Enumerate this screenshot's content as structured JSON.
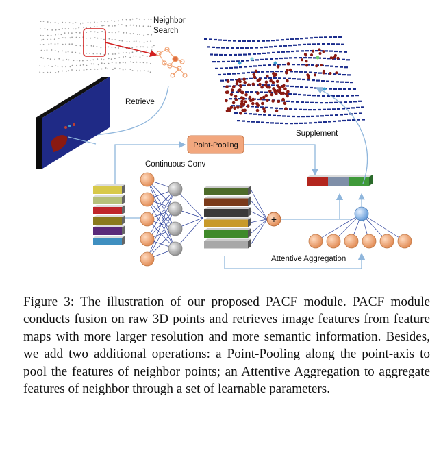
{
  "figure": {
    "labels": {
      "neighbor_search_line1": "Neighbor",
      "neighbor_search_line2": "Search",
      "retrieve": "Retrieve",
      "supplement": "Supplement",
      "point_pooling": "Point-Pooling",
      "continuous_conv": "Continuous Conv",
      "attentive_aggregation": "Attentive Aggregation",
      "plus_symbol": "+"
    },
    "colors": {
      "feature_map_blue": "#1f2a86",
      "lidar_blue": "#1a2c8c",
      "car_red": "#8a1a12",
      "pooling_box": "#f2a77e",
      "neuron_orange": "#f0a070",
      "neuron_gray": "#a8a8a8",
      "attention_node": "#7fb4e6",
      "connector_blue": "#8fb6dc",
      "arrow_blue": "#2a3f9a",
      "highlight_red": "#d22020"
    },
    "left_stack_colors": [
      "#d8c94a",
      "#b6c07a",
      "#c0262a",
      "#8a7a1e",
      "#5a2a7a",
      "#3f8fc0"
    ],
    "right_stack_colors": [
      "#4d6b2a",
      "#7a3a1a",
      "#3a3a3a",
      "#c89a2a",
      "#3f8a2a",
      "#a8a8a8"
    ],
    "pooled_vector_colors": [
      "#b3261e",
      "#7f8fa8",
      "#3f9a3a"
    ]
  },
  "caption": {
    "label": "Figure 3:",
    "text": "The illustration of our proposed PACF module. PACF module conducts fusion on raw 3D points and retrieves image features from feature maps with more larger resolution and more semantic information. Besides, we add two additional operations: a Point-Pooling along the point-axis to pool the features of neighbor points; an Attentive Aggregation to aggregate features of neighbor through a set of learnable parameters."
  }
}
